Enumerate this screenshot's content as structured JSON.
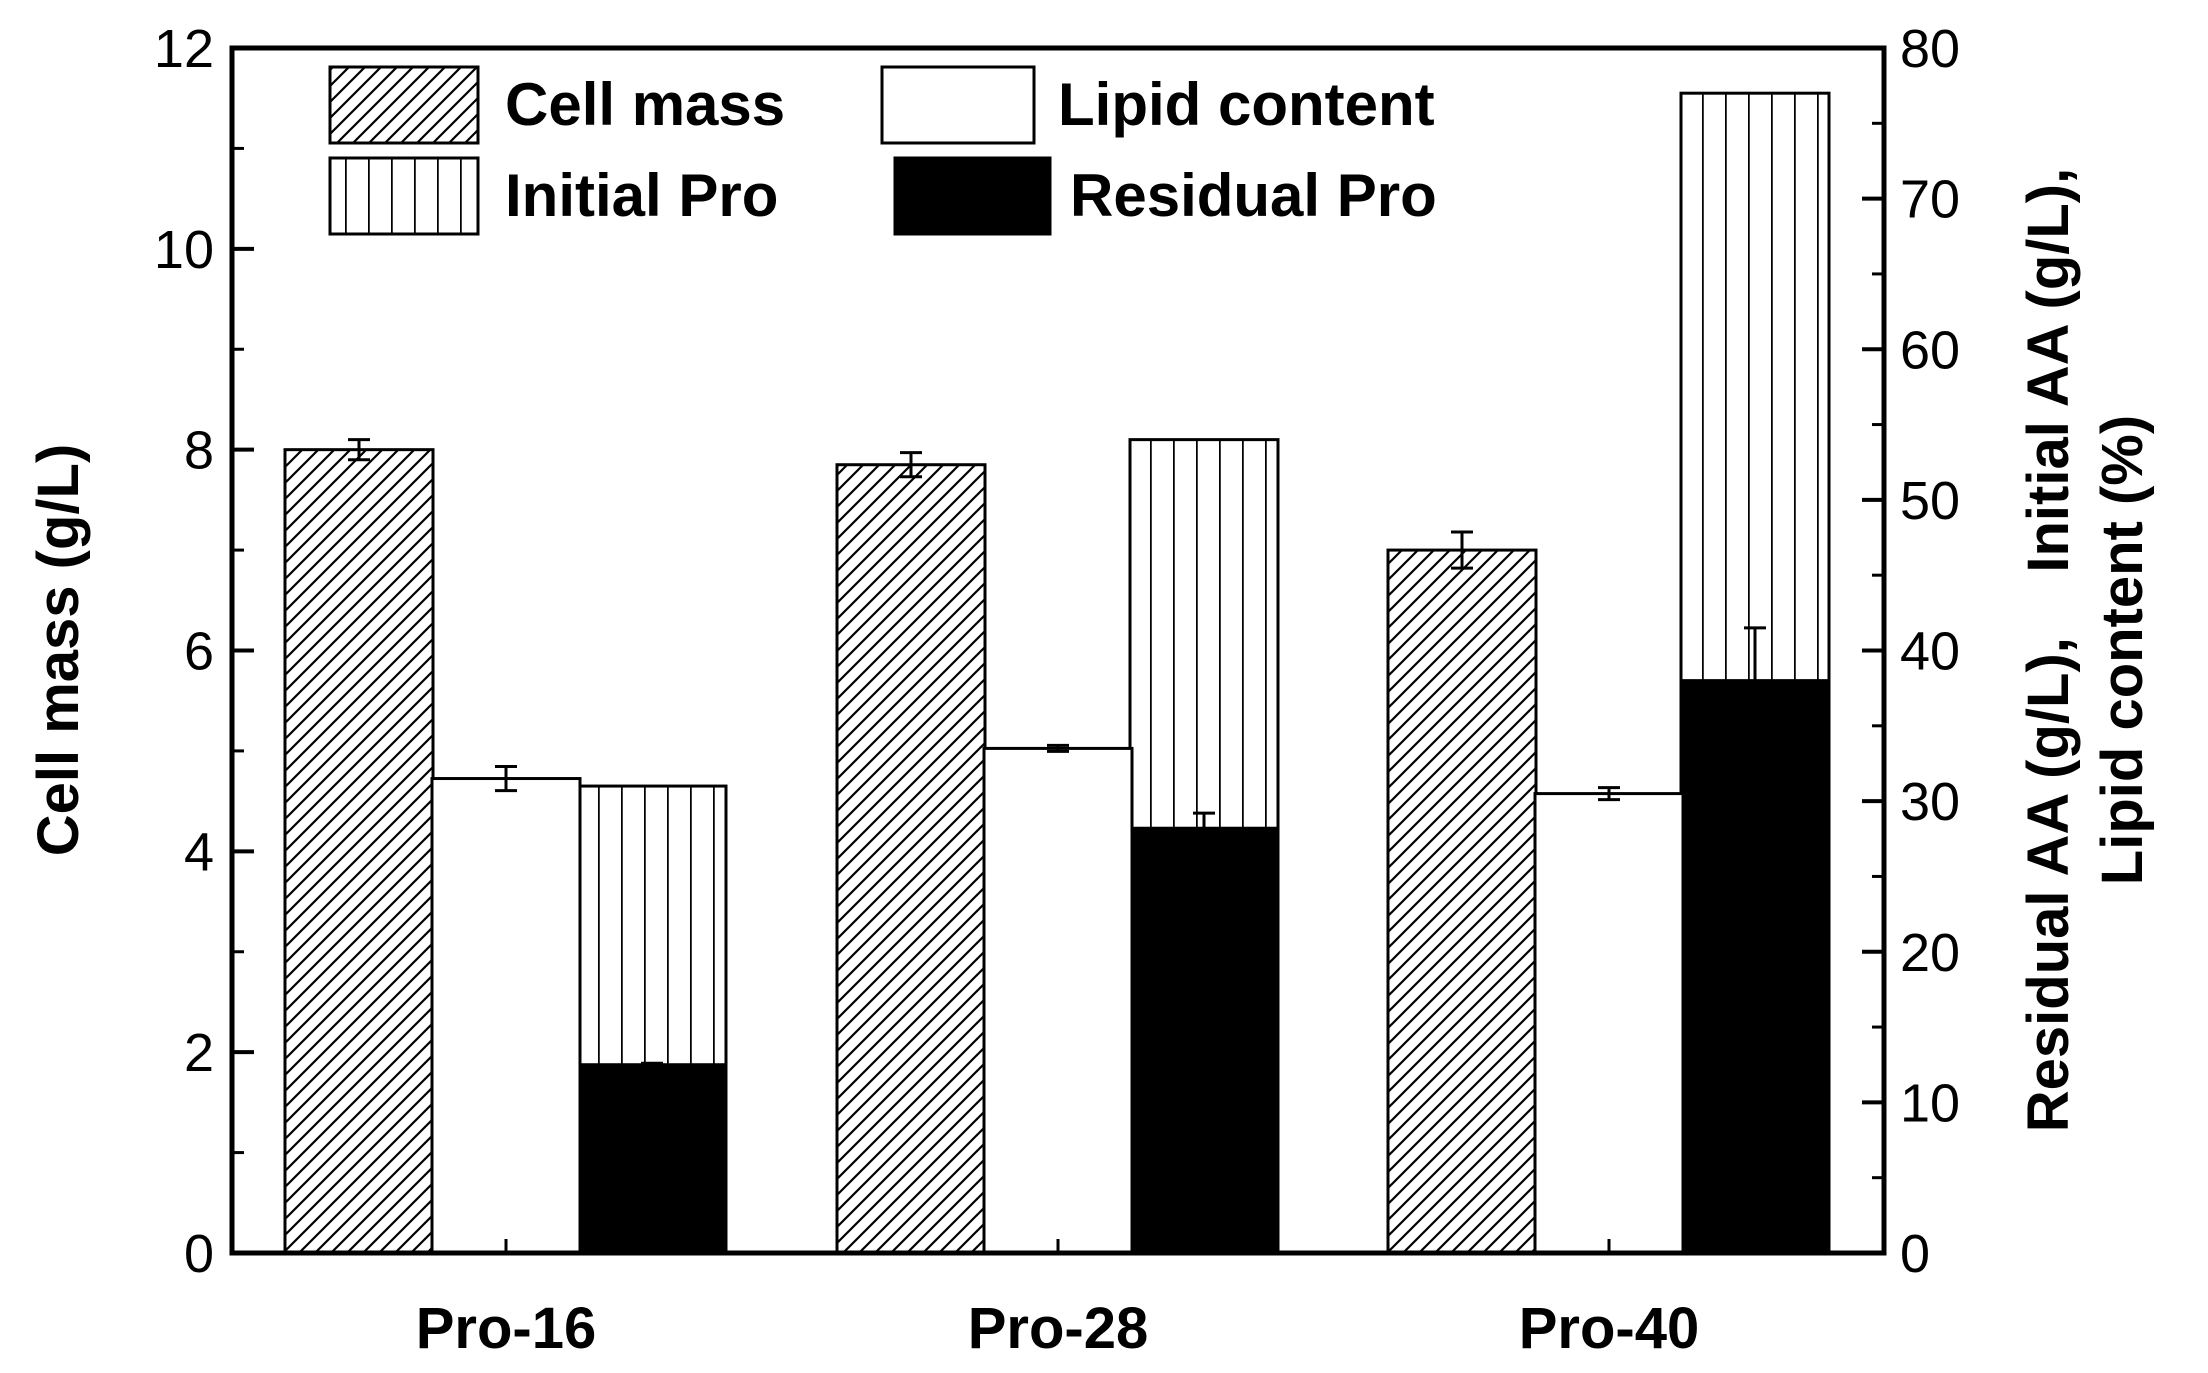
{
  "chart_data": {
    "type": "bar",
    "categories": [
      "Pro-16",
      "Pro-28",
      "Pro-40"
    ],
    "y_left": {
      "label": "Cell mass (g/L)",
      "ylim": [
        0,
        12
      ],
      "ticks": [
        "0",
        "2",
        "4",
        "6",
        "8",
        "10",
        "12"
      ]
    },
    "y_right": {
      "label_line1": "Residual AA (g/L),    Initial AA (g/L),",
      "label_line2": "Lipid content (%)",
      "ylim": [
        0,
        80
      ],
      "ticks": [
        "0",
        "10",
        "20",
        "30",
        "40",
        "50",
        "60",
        "70",
        "80"
      ]
    },
    "series": [
      {
        "name": "Cell mass",
        "axis": "left",
        "pattern": "diagonal",
        "values": [
          8.0,
          7.85,
          7.0
        ],
        "errors": [
          0.1,
          0.12,
          0.18
        ]
      },
      {
        "name": "Lipid content",
        "axis": "right",
        "pattern": "white",
        "values": [
          31.5,
          33.5,
          30.5
        ],
        "errors": [
          0.8,
          0.2,
          0.4
        ]
      },
      {
        "name": "Initial Pro",
        "axis": "right",
        "pattern": "vertical",
        "values": [
          31.0,
          54.0,
          77.0
        ],
        "errors": [
          0,
          0,
          0
        ]
      },
      {
        "name": "Residual Pro",
        "axis": "right",
        "pattern": "black",
        "values": [
          12.5,
          28.2,
          38.0
        ],
        "errors": [
          0.1,
          1.0,
          3.5
        ]
      }
    ],
    "legend": [
      "Cell mass",
      "Lipid content",
      "Initial Pro",
      "Residual Pro"
    ],
    "legend_position": "top-left",
    "grid": false
  }
}
